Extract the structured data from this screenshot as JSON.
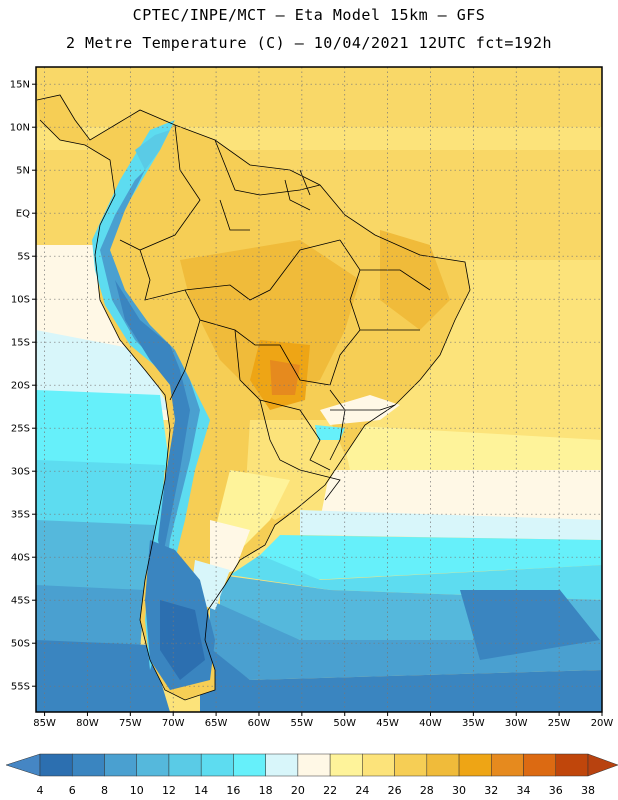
{
  "header": {
    "line1": "CPTEC/INPE/MCT –  Eta Model 15km – GFS",
    "line2": "2 Metre Temperature (C) – 10/04/2021 12UTC fct=192h"
  },
  "map": {
    "lon_min": -86,
    "lon_max": -20,
    "lat_min": -58,
    "lat_max": 17,
    "lon_ticks": [
      {
        "lon": -85,
        "label": "85W"
      },
      {
        "lon": -80,
        "label": "80W"
      },
      {
        "lon": -75,
        "label": "75W"
      },
      {
        "lon": -70,
        "label": "70W"
      },
      {
        "lon": -65,
        "label": "65W"
      },
      {
        "lon": -60,
        "label": "60W"
      },
      {
        "lon": -55,
        "label": "55W"
      },
      {
        "lon": -50,
        "label": "50W"
      },
      {
        "lon": -45,
        "label": "45W"
      },
      {
        "lon": -40,
        "label": "40W"
      },
      {
        "lon": -35,
        "label": "35W"
      },
      {
        "lon": -30,
        "label": "30W"
      },
      {
        "lon": -25,
        "label": "25W"
      },
      {
        "lon": -20,
        "label": "20W"
      }
    ],
    "lat_ticks": [
      {
        "lat": 15,
        "label": "15N"
      },
      {
        "lat": 10,
        "label": "10N"
      },
      {
        "lat": 5,
        "label": "5N"
      },
      {
        "lat": 0,
        "label": "EQ"
      },
      {
        "lat": -5,
        "label": "5S"
      },
      {
        "lat": -10,
        "label": "10S"
      },
      {
        "lat": -15,
        "label": "15S"
      },
      {
        "lat": -20,
        "label": "20S"
      },
      {
        "lat": -25,
        "label": "25S"
      },
      {
        "lat": -30,
        "label": "30S"
      },
      {
        "lat": -35,
        "label": "35S"
      },
      {
        "lat": -40,
        "label": "40S"
      },
      {
        "lat": -45,
        "label": "45S"
      },
      {
        "lat": -50,
        "label": "50S"
      },
      {
        "lat": -55,
        "label": "55S"
      }
    ]
  },
  "colorbar": {
    "labels": [
      "4",
      "6",
      "8",
      "10",
      "12",
      "14",
      "16",
      "18",
      "20",
      "22",
      "24",
      "26",
      "28",
      "30",
      "32",
      "34",
      "36",
      "38"
    ],
    "colors": [
      "#2c6fb0",
      "#3a85c0",
      "#4aa0d0",
      "#55b8dc",
      "#5acbe6",
      "#5ddcf0",
      "#66f0fa",
      "#d8f6fa",
      "#fff8e6",
      "#fef39a",
      "#fce37a",
      "#f6ce55",
      "#f0bb3a",
      "#eea515",
      "#e68a1e",
      "#dc6a12",
      "#c0460b"
    ],
    "low_color": "#4586c4",
    "high_color": "#b8420f"
  }
}
